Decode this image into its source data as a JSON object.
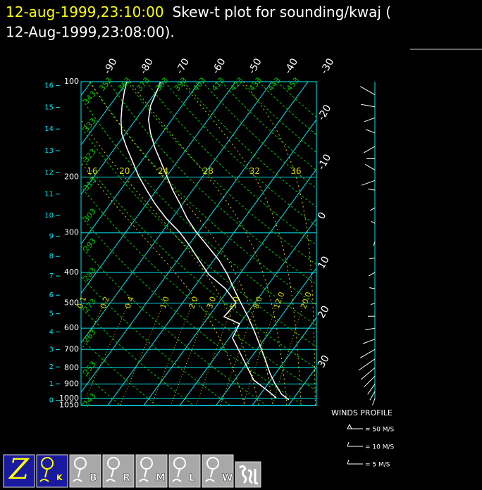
{
  "header": {
    "timestamp": "12-aug-1999,23:10:00",
    "title_line1": "Skew-t plot for sounding/kwaj (",
    "title_line2": "12-Aug-1999,23:08:00)."
  },
  "chart_data": {
    "type": "skewt",
    "ylim": [
      1050,
      100
    ],
    "ylog": true,
    "yticks": [
      100,
      200,
      300,
      400,
      500,
      600,
      700,
      800,
      900,
      1000,
      1050
    ],
    "y2ticks": [
      0,
      1,
      2,
      3,
      4,
      5,
      6,
      7,
      8,
      9,
      10,
      11,
      12,
      13,
      14,
      15,
      16
    ],
    "xticks": [
      -90,
      -80,
      -70,
      -60,
      -50,
      -40,
      -30,
      -20,
      -10,
      0,
      10,
      20,
      30
    ],
    "dry_adiabats": [
      243,
      253,
      263,
      273,
      283,
      293,
      303,
      313,
      323,
      333,
      343,
      353,
      363,
      373,
      383,
      393,
      403,
      413,
      423,
      433,
      443,
      453
    ],
    "moist_adiabats": [
      16,
      20,
      24,
      28,
      32,
      36
    ],
    "mixing_ratios": [
      0.1,
      0.2,
      0.4,
      {
        "value": 1,
        "label": "1.0"
      },
      {
        "value": 2,
        "label": "2.0"
      },
      {
        "value": 3,
        "label": "3.0"
      },
      {
        "value": 5,
        "label": "5.0"
      },
      {
        "value": 8,
        "label": "8.0"
      },
      {
        "value": 12,
        "label": "12.0"
      },
      {
        "value": 20,
        "label": "20.0"
      }
    ],
    "colors": {
      "isotherm": "#00e5ee",
      "dry": "#00c800",
      "moist": "#d8d800",
      "mixing": "#d8d800"
    },
    "series": [
      {
        "color": "#ffffff",
        "pressure": [
          100,
          107,
          119,
          132,
          146,
          162,
          179,
          198,
          220,
          243,
          270,
          299,
          331,
          367,
          406,
          450,
          499,
          552,
          612,
          678,
          751,
          832,
          898,
          970,
          1010
        ],
        "values": [
          -70.8,
          -69.9,
          -68.7,
          -66.4,
          -63.0,
          -58.9,
          -54.5,
          -50.1,
          -45.5,
          -40.7,
          -35.8,
          -30.4,
          -24.4,
          -18.4,
          -13.3,
          -8.7,
          -3.9,
          0.9,
          5.5,
          9.9,
          14.2,
          18.4,
          21.9,
          25.9,
          29.0
        ]
      },
      {
        "color": "#ffffff",
        "pressure": [
          100,
          107,
          119,
          132,
          146,
          162,
          179,
          198,
          220,
          243,
          270,
          299,
          331,
          367,
          406,
          450,
          499,
          552,
          581,
          644,
          713,
          790,
          875,
          945,
          995
        ],
        "values": [
          -80.1,
          -78.9,
          -76.6,
          -74.0,
          -71.0,
          -66.7,
          -62.3,
          -57.9,
          -52.7,
          -47.6,
          -41.6,
          -35.0,
          -29.3,
          -23.9,
          -18.5,
          -11.0,
          -5.2,
          -5.7,
          0.0,
          0.9,
          5.7,
          10.5,
          15.3,
          21.3,
          25.1
        ]
      }
    ],
    "winds": {
      "title": "WINDS PROFILE",
      "legend": [
        "= 50 M/S",
        "= 10 M/S",
        "= 5 M/S"
      ],
      "pressure": [
        110,
        120,
        130,
        145,
        160,
        175,
        190,
        205,
        220,
        250,
        280,
        320,
        360,
        400,
        450,
        500,
        550,
        600,
        650,
        700,
        750,
        800,
        850,
        900,
        950,
        1000
      ],
      "speed": [
        12,
        10,
        8,
        7,
        9,
        6,
        8,
        10,
        5,
        4,
        3,
        3,
        4,
        5,
        4,
        3,
        5,
        7,
        9,
        12,
        14,
        13,
        11,
        9,
        7,
        5
      ],
      "direction": [
        300,
        280,
        250,
        290,
        240,
        270,
        300,
        250,
        280,
        240,
        300,
        200,
        260,
        240,
        280,
        250,
        270,
        260,
        250,
        240,
        235,
        230,
        225,
        215,
        210,
        200
      ]
    }
  },
  "toolbar": {
    "buttons": [
      "Z",
      "K",
      "B",
      "R",
      "M",
      "L",
      "W"
    ]
  }
}
